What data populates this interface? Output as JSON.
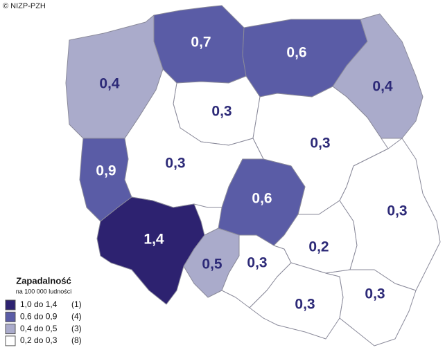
{
  "credit": "© NIZP-PZH",
  "legend": {
    "title": "Zapadalność",
    "subtitle": "na 100 000 ludności",
    "items": [
      {
        "label": "1,0 do 1,4",
        "count": "(1)",
        "color": "#2d2270"
      },
      {
        "label": "0,6 do 0,9",
        "count": "(4)",
        "color": "#5a5ca6"
      },
      {
        "label": "0,4 do 0,5",
        "count": "(3)",
        "color": "#aaabcb"
      },
      {
        "label": "0,2 do 0,3",
        "count": "(8)",
        "color": "#ffffff"
      }
    ]
  },
  "regions": [
    {
      "label": "0,7",
      "color": "#5a5ca6"
    },
    {
      "label": "0,6",
      "color": "#5a5ca6"
    },
    {
      "label": "0,4",
      "color": "#aaabcb"
    },
    {
      "label": "0,4",
      "color": "#aaabcb"
    },
    {
      "label": "0,3",
      "color": "#ffffff"
    },
    {
      "label": "0,3",
      "color": "#ffffff"
    },
    {
      "label": "0,9",
      "color": "#5a5ca6"
    },
    {
      "label": "0,3",
      "color": "#ffffff"
    },
    {
      "label": "0,6",
      "color": "#5a5ca6"
    },
    {
      "label": "1,4",
      "color": "#2d2270"
    },
    {
      "label": "0,5",
      "color": "#aaabcb"
    },
    {
      "label": "0,3",
      "color": "#ffffff"
    },
    {
      "label": "0,2",
      "color": "#ffffff"
    },
    {
      "label": "0,3",
      "color": "#ffffff"
    },
    {
      "label": "0,3",
      "color": "#ffffff"
    },
    {
      "label": "0,3",
      "color": "#ffffff"
    }
  ]
}
